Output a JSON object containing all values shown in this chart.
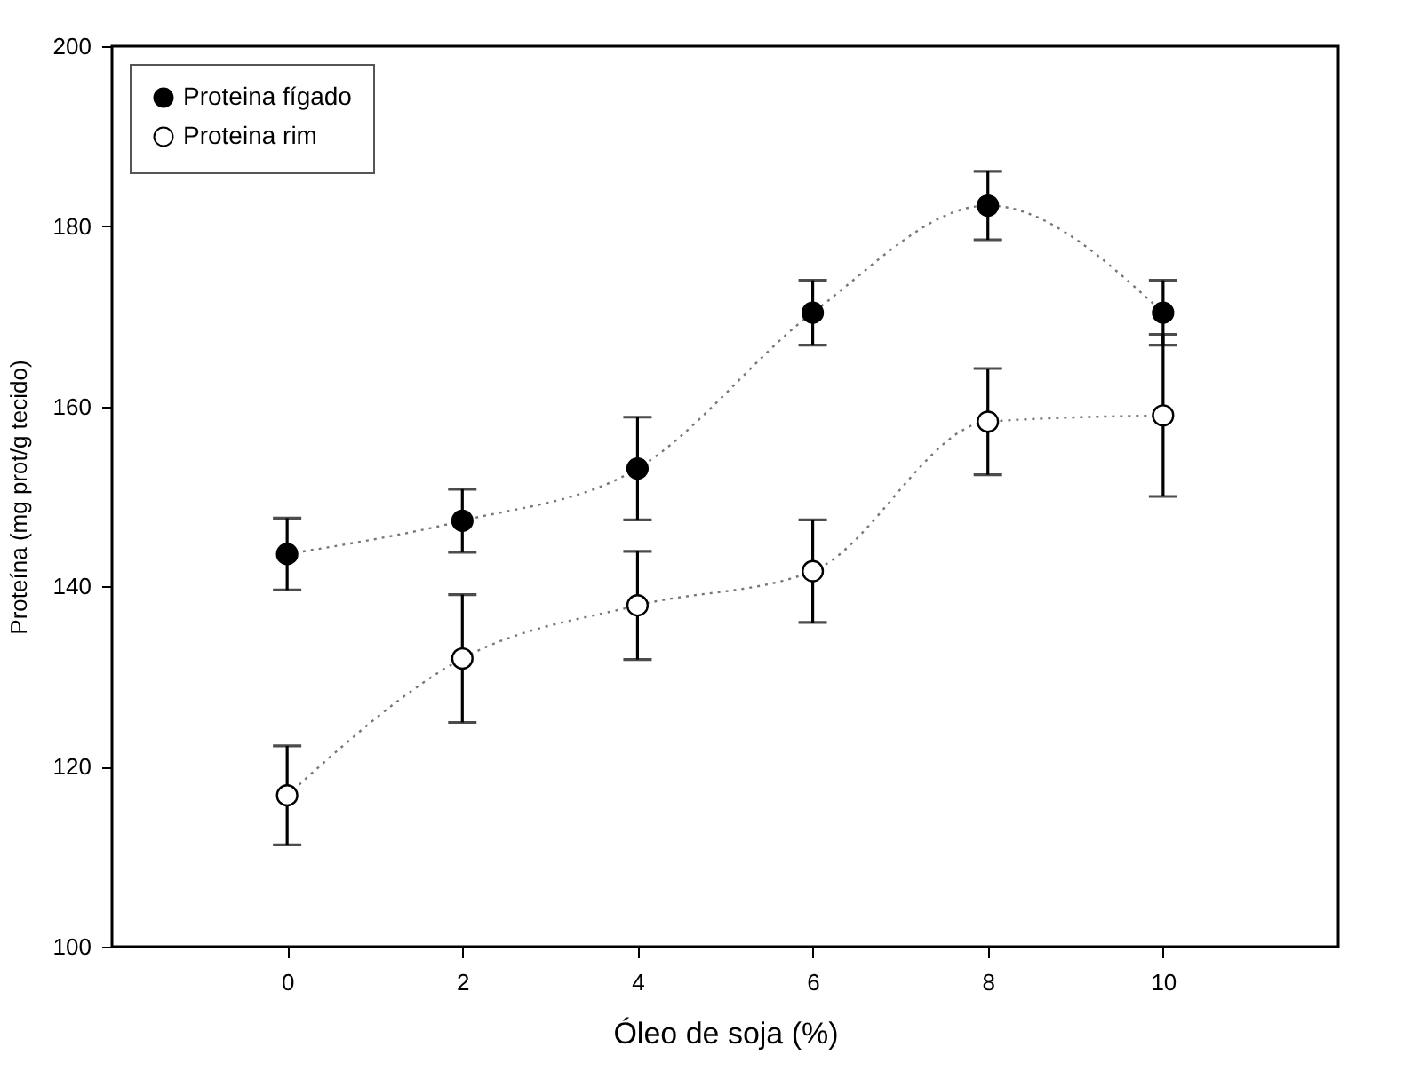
{
  "chart_data": {
    "type": "line",
    "xlabel": "Óleo de soja (%)",
    "ylabel": "Proteína (mg prot/g tecido)",
    "x": [
      0,
      2,
      4,
      6,
      8,
      10
    ],
    "series": [
      {
        "name": "Proteina fígado",
        "color": "#000000",
        "values": [
          143.6,
          147.3,
          153.1,
          170.4,
          182.3,
          170.4
        ],
        "errors": [
          4,
          3.5,
          5.7,
          3.6,
          3.8,
          3.6
        ]
      },
      {
        "name": "Proteina rim",
        "color": "#ffffff",
        "values": [
          116.8,
          132,
          137.9,
          141.7,
          158.3,
          159
        ],
        "errors": [
          5.5,
          7.1,
          6,
          5.7,
          5.9,
          9
        ]
      }
    ],
    "xlim": [
      -2,
      12
    ],
    "xticks": [
      0,
      2,
      4,
      6,
      8,
      10
    ],
    "ylim": [
      100,
      200
    ],
    "yticks": [
      100,
      120,
      140,
      160,
      180,
      200
    ],
    "grid": false,
    "legend": "top left",
    "marker": "circle",
    "line_style": "dotted"
  }
}
